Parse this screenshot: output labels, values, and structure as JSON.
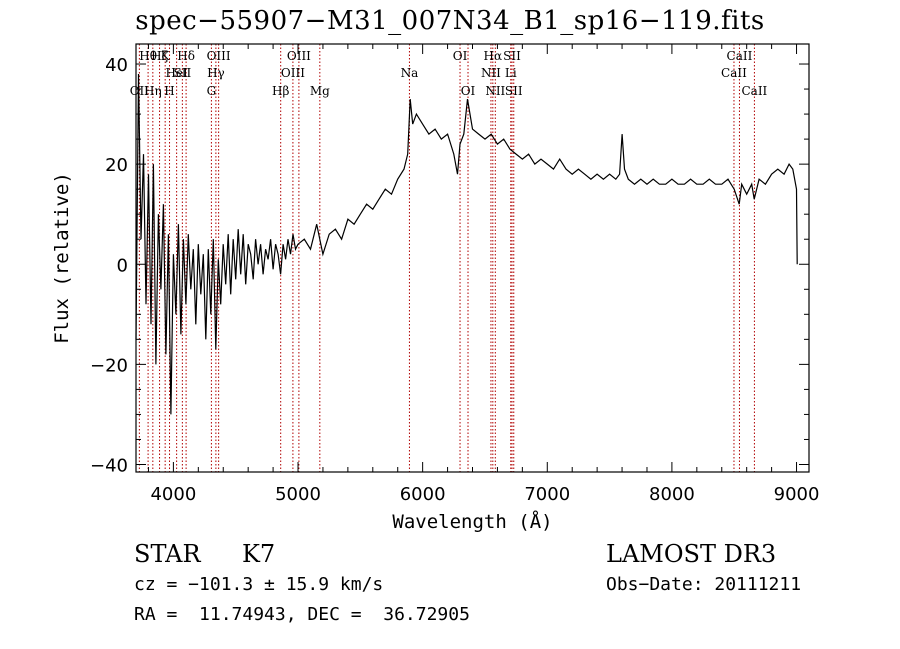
{
  "chart_data": {
    "type": "line",
    "title": "spec−55907−M31_007N34_B1_sp16−119.fits",
    "xlabel": "Wavelength (Å)",
    "ylabel": "Flux (relative)",
    "xlim": [
      3700,
      9100
    ],
    "ylim": [
      -41.5,
      44
    ],
    "x_ticks": [
      4000,
      5000,
      6000,
      7000,
      8000,
      9000
    ],
    "x_tick_labels": [
      "4000",
      "5000",
      "6000",
      "7000",
      "8000",
      "9000"
    ],
    "y_ticks": [
      -40,
      -20,
      0,
      20,
      40
    ],
    "y_tick_labels": [
      "−40",
      "−20",
      "0",
      "20",
      "40"
    ],
    "series": [
      {
        "points": [
          [
            3700,
            -15
          ],
          [
            3720,
            38
          ],
          [
            3740,
            5
          ],
          [
            3760,
            22
          ],
          [
            3780,
            -8
          ],
          [
            3800,
            18
          ],
          [
            3820,
            -12
          ],
          [
            3840,
            20
          ],
          [
            3860,
            -20
          ],
          [
            3880,
            10
          ],
          [
            3900,
            -5
          ],
          [
            3920,
            12
          ],
          [
            3940,
            -18
          ],
          [
            3960,
            6
          ],
          [
            3980,
            -30
          ],
          [
            4000,
            2
          ],
          [
            4020,
            -10
          ],
          [
            4040,
            8
          ],
          [
            4060,
            -14
          ],
          [
            4080,
            5
          ],
          [
            4100,
            -8
          ],
          [
            4120,
            6
          ],
          [
            4140,
            -5
          ],
          [
            4160,
            3
          ],
          [
            4180,
            -12
          ],
          [
            4200,
            4
          ],
          [
            4220,
            -6
          ],
          [
            4240,
            2
          ],
          [
            4260,
            -15
          ],
          [
            4280,
            3
          ],
          [
            4300,
            -10
          ],
          [
            4320,
            5
          ],
          [
            4340,
            -17
          ],
          [
            4360,
            1
          ],
          [
            4380,
            -8
          ],
          [
            4400,
            4
          ],
          [
            4420,
            -4
          ],
          [
            4440,
            6
          ],
          [
            4460,
            -6
          ],
          [
            4480,
            5
          ],
          [
            4500,
            -3
          ],
          [
            4520,
            7
          ],
          [
            4540,
            -2
          ],
          [
            4560,
            6
          ],
          [
            4580,
            -4
          ],
          [
            4600,
            4
          ],
          [
            4620,
            2
          ],
          [
            4640,
            -3
          ],
          [
            4660,
            5
          ],
          [
            4680,
            0
          ],
          [
            4700,
            4
          ],
          [
            4720,
            -2
          ],
          [
            4740,
            3
          ],
          [
            4760,
            1
          ],
          [
            4780,
            5
          ],
          [
            4800,
            -1
          ],
          [
            4820,
            4
          ],
          [
            4840,
            2
          ],
          [
            4860,
            -2
          ],
          [
            4880,
            4
          ],
          [
            4900,
            1
          ],
          [
            4920,
            5
          ],
          [
            4940,
            2
          ],
          [
            4960,
            6
          ],
          [
            4980,
            3
          ],
          [
            5000,
            4
          ],
          [
            5050,
            5
          ],
          [
            5100,
            3
          ],
          [
            5150,
            8
          ],
          [
            5200,
            2
          ],
          [
            5250,
            6
          ],
          [
            5300,
            7
          ],
          [
            5350,
            5
          ],
          [
            5400,
            9
          ],
          [
            5450,
            8
          ],
          [
            5500,
            10
          ],
          [
            5550,
            12
          ],
          [
            5600,
            11
          ],
          [
            5650,
            13
          ],
          [
            5700,
            15
          ],
          [
            5750,
            14
          ],
          [
            5800,
            17
          ],
          [
            5850,
            19
          ],
          [
            5880,
            22
          ],
          [
            5900,
            33
          ],
          [
            5920,
            28
          ],
          [
            5950,
            30
          ],
          [
            6000,
            28
          ],
          [
            6050,
            26
          ],
          [
            6100,
            27
          ],
          [
            6150,
            25
          ],
          [
            6200,
            26
          ],
          [
            6250,
            22
          ],
          [
            6280,
            18
          ],
          [
            6300,
            24
          ],
          [
            6330,
            26
          ],
          [
            6360,
            33
          ],
          [
            6400,
            27
          ],
          [
            6450,
            26
          ],
          [
            6500,
            25
          ],
          [
            6550,
            26
          ],
          [
            6600,
            24
          ],
          [
            6650,
            25
          ],
          [
            6700,
            23
          ],
          [
            6750,
            22
          ],
          [
            6800,
            21
          ],
          [
            6850,
            22
          ],
          [
            6900,
            20
          ],
          [
            6950,
            21
          ],
          [
            7000,
            20
          ],
          [
            7050,
            19
          ],
          [
            7100,
            21
          ],
          [
            7150,
            19
          ],
          [
            7200,
            18
          ],
          [
            7250,
            19
          ],
          [
            7300,
            18
          ],
          [
            7350,
            17
          ],
          [
            7400,
            18
          ],
          [
            7450,
            17
          ],
          [
            7500,
            18
          ],
          [
            7550,
            17
          ],
          [
            7580,
            18
          ],
          [
            7600,
            26
          ],
          [
            7620,
            19
          ],
          [
            7650,
            17
          ],
          [
            7700,
            16
          ],
          [
            7750,
            17
          ],
          [
            7800,
            16
          ],
          [
            7850,
            17
          ],
          [
            7900,
            16
          ],
          [
            7950,
            16
          ],
          [
            8000,
            17
          ],
          [
            8050,
            16
          ],
          [
            8100,
            16
          ],
          [
            8150,
            17
          ],
          [
            8200,
            16
          ],
          [
            8250,
            16
          ],
          [
            8300,
            17
          ],
          [
            8350,
            16
          ],
          [
            8400,
            16
          ],
          [
            8450,
            17
          ],
          [
            8500,
            15
          ],
          [
            8540,
            12
          ],
          [
            8560,
            16
          ],
          [
            8600,
            14
          ],
          [
            8640,
            16
          ],
          [
            8660,
            13
          ],
          [
            8700,
            17
          ],
          [
            8750,
            16
          ],
          [
            8800,
            18
          ],
          [
            8850,
            19
          ],
          [
            8900,
            18
          ],
          [
            8940,
            20
          ],
          [
            8970,
            19
          ],
          [
            9000,
            15
          ],
          [
            9005,
            0
          ]
        ]
      }
    ],
    "lines": [
      {
        "wave": 3727,
        "label": "OII",
        "row": 2
      },
      {
        "wave": 3797,
        "label": "Hθ",
        "row": 0
      },
      {
        "wave": 3835,
        "label": "Hη",
        "row": 2
      },
      {
        "wave": 3889,
        "label": "Hζ",
        "row": 0
      },
      {
        "wave": 3934,
        "label": "K",
        "row": 0
      },
      {
        "wave": 3969,
        "label": "H",
        "row": 2
      },
      {
        "wave": 4026,
        "label": "HeI",
        "row": 1
      },
      {
        "wave": 4072,
        "label": "SII",
        "row": 1
      },
      {
        "wave": 4102,
        "label": "Hδ",
        "row": 0
      },
      {
        "wave": 4305,
        "label": "G",
        "row": 2
      },
      {
        "wave": 4341,
        "label": "Hγ",
        "row": 1
      },
      {
        "wave": 4363,
        "label": "OIII",
        "row": 0
      },
      {
        "wave": 4861,
        "label": "Hβ",
        "row": 2
      },
      {
        "wave": 4959,
        "label": "OIII",
        "row": 1
      },
      {
        "wave": 5007,
        "label": "OIII",
        "row": 0
      },
      {
        "wave": 5175,
        "label": "Mg",
        "row": 2
      },
      {
        "wave": 5894,
        "label": "Na",
        "row": 1
      },
      {
        "wave": 6300,
        "label": "OI",
        "row": 0
      },
      {
        "wave": 6364,
        "label": "OI",
        "row": 2
      },
      {
        "wave": 6548,
        "label": "NII",
        "row": 1
      },
      {
        "wave": 6563,
        "label": "Hα",
        "row": 0
      },
      {
        "wave": 6583,
        "label": "NII",
        "row": 2
      },
      {
        "wave": 6707,
        "label": "Li",
        "row": 1
      },
      {
        "wave": 6717,
        "label": "SII",
        "row": 0
      },
      {
        "wave": 6731,
        "label": "SII",
        "row": 2
      },
      {
        "wave": 8498,
        "label": "CaII",
        "row": 1
      },
      {
        "wave": 8542,
        "label": "CaII",
        "row": 0
      },
      {
        "wave": 8662,
        "label": "CaII",
        "row": 2
      }
    ]
  },
  "info": {
    "class_label": "STAR",
    "subclass": "K7",
    "survey": "LAMOST DR3",
    "cz": "cz = −101.3 ± 15.9 km/s",
    "obs_date": "Obs−Date: 20111211",
    "coords": "RA =  11.74943, DEC =  36.72905"
  }
}
